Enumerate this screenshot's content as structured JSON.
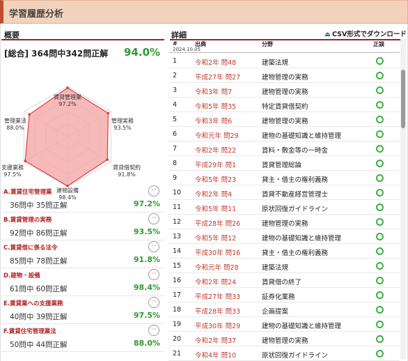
{
  "page_title": "学習履歴分析",
  "overview": {
    "heading": "概要",
    "total_label": "[総合] 364問中342問正解",
    "total_pct": "94.0%",
    "radar": {
      "axes": [
        {
          "name": "賃貸管理業",
          "pct_label": "97.2%",
          "value": 97.2
        },
        {
          "name": "管理実務",
          "pct_label": "93.5%",
          "value": 93.5
        },
        {
          "name": "賃貸借契約",
          "pct_label": "91.8%",
          "value": 91.8
        },
        {
          "name": "建物設備",
          "pct_label": "98.4%",
          "value": 98.4
        },
        {
          "name": "支援業務",
          "pct_label": "97.5%",
          "value": 97.5
        },
        {
          "name": "管理業法",
          "pct_label": "88.0%",
          "value": 88.0
        }
      ],
      "fill_color": "#f4a7a7",
      "line_color": "#e23b3b"
    },
    "categories": [
      {
        "name": "A.賃貸住宅管理業",
        "count": "36問中 35問正解",
        "pct": "97.2%"
      },
      {
        "name": "B.賃貸管理の実務",
        "count": "92問中 86問正解",
        "pct": "93.5%"
      },
      {
        "name": "C.賃貸借に係る法令",
        "count": "85問中 78問正解",
        "pct": "91.8%"
      },
      {
        "name": "D.建物・設備",
        "count": "61問中 60問正解",
        "pct": "98.4%"
      },
      {
        "name": "E.賃貸業への支援業務",
        "count": "40問中 39問正解",
        "pct": "97.5%"
      },
      {
        "name": "F.賃貸住宅管理業法",
        "count": "50問中 44問正解",
        "pct": "88.0%"
      }
    ],
    "more_label": "···"
  },
  "details": {
    "heading": "詳細",
    "csv_label": "CSV形式でダウンロード",
    "csv_icon": "download-icon",
    "columns": {
      "no": "#",
      "source": "出典",
      "field": "分野",
      "result": "正誤",
      "date": "2024.10.05"
    },
    "rows": [
      {
        "no": "1",
        "source": "令和2年 問48",
        "field": "建築法規"
      },
      {
        "no": "2",
        "source": "平成27年 問27",
        "field": "建物管理の実務"
      },
      {
        "no": "3",
        "source": "令和3年 問7",
        "field": "建物管理の実務"
      },
      {
        "no": "4",
        "source": "令和5年 問35",
        "field": "特定賃貸借契約"
      },
      {
        "no": "5",
        "source": "令和3年 問6",
        "field": "建物管理の実務"
      },
      {
        "no": "6",
        "source": "令和元年 問29",
        "field": "建物の基礎知識と維持管理"
      },
      {
        "no": "7",
        "source": "令和2年 問22",
        "field": "賃料・敷金等の一時金"
      },
      {
        "no": "8",
        "source": "平成29年 問1",
        "field": "賃貸管理総論"
      },
      {
        "no": "9",
        "source": "令和5年 問23",
        "field": "貸主・借主の権利義務"
      },
      {
        "no": "10",
        "source": "令和2年 問4",
        "field": "賃貸不動産経営管理士"
      },
      {
        "no": "11",
        "source": "令和5年 問11",
        "field": "原状回復ガイドライン"
      },
      {
        "no": "12",
        "source": "平成28年 問26",
        "field": "建物管理の実務"
      },
      {
        "no": "13",
        "source": "令和5年 問12",
        "field": "建物の基礎知識と維持管理"
      },
      {
        "no": "14",
        "source": "平成30年 問16",
        "field": "貸主・借主の権利義務"
      },
      {
        "no": "15",
        "source": "令和元年 問28",
        "field": "建築法規"
      },
      {
        "no": "16",
        "source": "令和2年 問24",
        "field": "賃貸借の終了"
      },
      {
        "no": "17",
        "source": "平成27年 問33",
        "field": "証券化業務"
      },
      {
        "no": "18",
        "source": "平成28年 問33",
        "field": "企画提案"
      },
      {
        "no": "19",
        "source": "平成30年 問29",
        "field": "建物の基礎知識と維持管理"
      },
      {
        "no": "20",
        "source": "令和2年 問37",
        "field": "建物管理の実務"
      },
      {
        "no": "21",
        "source": "令和4年 問10",
        "field": "原状回復ガイドライン"
      }
    ],
    "result_icon": "correct-circle-icon",
    "result_color": "#3cb043"
  }
}
